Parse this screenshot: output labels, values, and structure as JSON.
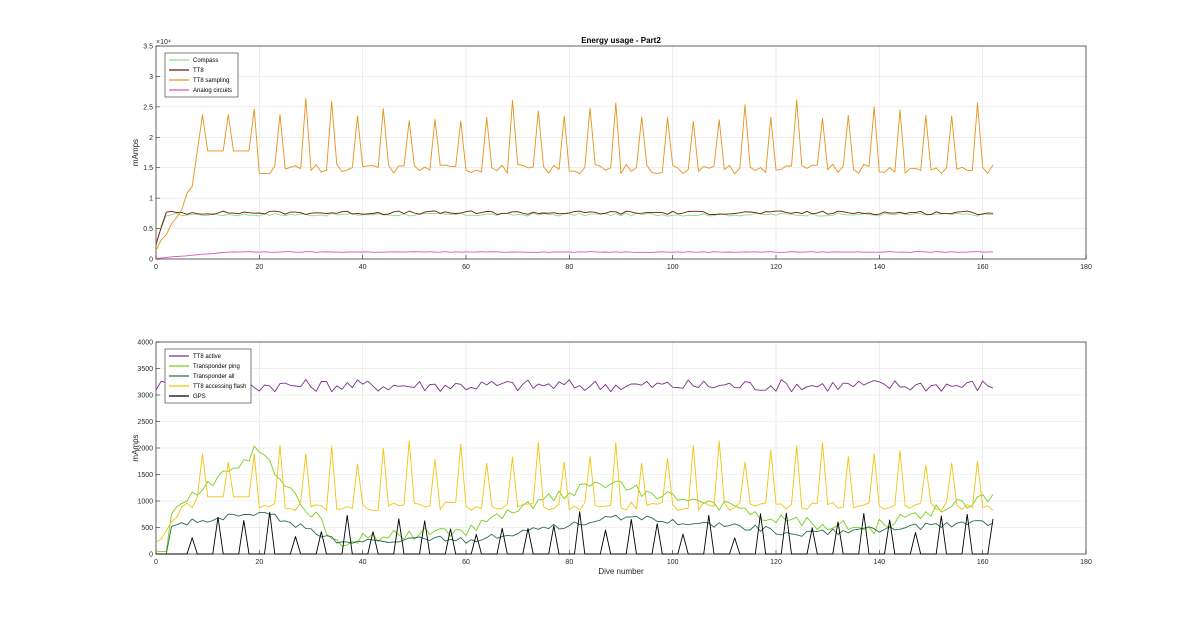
{
  "chart_data": [
    {
      "type": "line",
      "title": "Energy usage - Part2",
      "xlabel": "",
      "ylabel": "mAmps",
      "xlim": [
        0,
        180
      ],
      "ylim": [
        0,
        35000
      ],
      "xticks": [
        0,
        20,
        40,
        60,
        80,
        100,
        120,
        140,
        160,
        180
      ],
      "yticks": [
        0,
        5000,
        10000,
        15000,
        20000,
        25000,
        30000,
        35000
      ],
      "ytick_labels": [
        "0",
        "0.5",
        "1",
        "1.5",
        "2",
        "2.5",
        "3",
        "3.5"
      ],
      "exponent_label": "×10⁴",
      "grid": true,
      "legend_position": "top-left",
      "series": [
        {
          "name": "Compass",
          "color": "#8fdc8f",
          "style": "baseline",
          "params": {
            "base": 7300,
            "peak": 0,
            "ramp": 3,
            "noise": 250,
            "peakfreq": 0
          }
        },
        {
          "name": "TT8",
          "color": "#6b1d0a",
          "style": "baseline",
          "params": {
            "base": 7600,
            "peak": 0,
            "ramp": 3,
            "noise": 300,
            "peakfreq": 0
          }
        },
        {
          "name": "TT8 sampling",
          "color": "#e69319",
          "style": "spiky",
          "params": {
            "base": 14800,
            "peak": 24500,
            "ramp": 10,
            "noise": 800
          }
        },
        {
          "name": "Analog circuits",
          "color": "#d957b0",
          "style": "baseline",
          "params": {
            "base": 1150,
            "peak": 0,
            "ramp": 15,
            "noise": 60,
            "peakfreq": 0
          }
        }
      ]
    },
    {
      "type": "line",
      "title": "",
      "xlabel": "Dive number",
      "ylabel": "mAmps",
      "xlim": [
        0,
        180
      ],
      "ylim": [
        0,
        4000
      ],
      "xticks": [
        0,
        20,
        40,
        60,
        80,
        100,
        120,
        140,
        160,
        180
      ],
      "yticks": [
        0,
        500,
        1000,
        1500,
        2000,
        2500,
        3000,
        3500,
        4000
      ],
      "ytick_labels": [
        "0",
        "500",
        "1000",
        "1500",
        "2000",
        "2500",
        "3000",
        "3500",
        "4000"
      ],
      "grid": true,
      "legend_position": "top-left",
      "series": [
        {
          "name": "TT8 active",
          "color": "#7e2f8e",
          "style": "baseline",
          "params": {
            "base": 3180,
            "peak": 0,
            "ramp": 1,
            "noise": 120,
            "peakfreq": 0
          }
        },
        {
          "name": "Transponder ping",
          "color": "#77d11f",
          "style": "hump",
          "params": {
            "base": 1500,
            "peak": 0,
            "ramp": 3,
            "noise": 100
          }
        },
        {
          "name": "Transponder all",
          "color": "#2a6e4f",
          "style": "hump2",
          "params": {
            "base": 700,
            "peak": 0,
            "ramp": 3,
            "noise": 60
          }
        },
        {
          "name": "TT8 accessing flash",
          "color": "#f2c40d",
          "style": "spiky",
          "params": {
            "base": 900,
            "peak": 1900,
            "ramp": 6,
            "noise": 80
          }
        },
        {
          "name": "GPS",
          "color": "#000000",
          "style": "gps",
          "params": {
            "base": 0,
            "peak": 700,
            "ramp": 0,
            "noise": 0
          }
        }
      ]
    }
  ]
}
